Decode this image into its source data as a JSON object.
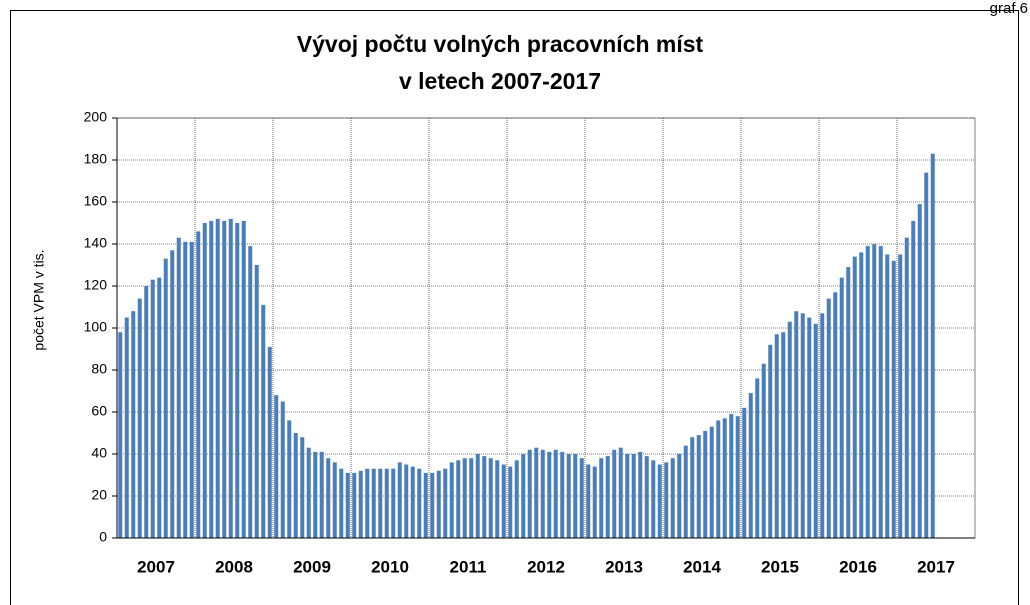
{
  "page_label": "graf 6",
  "chart_data": {
    "type": "bar",
    "title": [
      "Vývoj počtu volných pracovních míst",
      "v letech 2007-2017"
    ],
    "y_label": "počet VPM v tis.",
    "color": "#4a7ebb",
    "ylim": [
      0,
      200
    ],
    "yticks": [
      0,
      20,
      40,
      60,
      80,
      100,
      120,
      140,
      160,
      180,
      200
    ],
    "grid": true,
    "categories": [
      null,
      null,
      null,
      null,
      null,
      null,
      "2007",
      null,
      null,
      null,
      null,
      null,
      null,
      null,
      null,
      null,
      null,
      null,
      "2008",
      null,
      null,
      null,
      null,
      null,
      null,
      null,
      null,
      null,
      null,
      null,
      "2009",
      null,
      null,
      null,
      null,
      null,
      null,
      null,
      null,
      null,
      null,
      null,
      "2010",
      null,
      null,
      null,
      null,
      null,
      null,
      null,
      null,
      null,
      null,
      null,
      "2011",
      null,
      null,
      null,
      null,
      null,
      null,
      null,
      null,
      null,
      null,
      null,
      "2012",
      null,
      null,
      null,
      null,
      null,
      null,
      null,
      null,
      null,
      null,
      null,
      "2013",
      null,
      null,
      null,
      null,
      null,
      null,
      null,
      null,
      null,
      null,
      null,
      "2014",
      null,
      null,
      null,
      null,
      null,
      null,
      null,
      null,
      null,
      null,
      null,
      "2015",
      null,
      null,
      null,
      null,
      null,
      null,
      null,
      null,
      null,
      null,
      null,
      "2016",
      null,
      null,
      null,
      null,
      null,
      null,
      null,
      null,
      null,
      null,
      null,
      "2017",
      null,
      null,
      null,
      null,
      null
    ],
    "values": [
      98,
      105,
      108,
      114,
      120,
      123,
      124,
      133,
      137,
      143,
      141,
      141,
      146,
      150,
      151,
      152,
      151,
      152,
      150,
      151,
      139,
      130,
      111,
      91,
      68,
      65,
      56,
      50,
      48,
      43,
      41,
      41,
      38,
      36,
      33,
      31,
      31,
      32,
      33,
      33,
      33,
      33,
      33,
      36,
      35,
      34,
      33,
      31,
      31,
      32,
      33,
      36,
      37,
      38,
      38,
      40,
      39,
      38,
      37,
      35,
      34,
      37,
      40,
      42,
      43,
      42,
      41,
      42,
      41,
      40,
      40,
      38,
      35,
      34,
      38,
      39,
      42,
      43,
      40,
      40,
      41,
      39,
      37,
      35,
      36,
      38,
      40,
      44,
      48,
      49,
      51,
      53,
      56,
      57,
      59,
      58,
      62,
      69,
      76,
      83,
      92,
      97,
      98,
      103,
      108,
      107,
      105,
      102,
      107,
      114,
      117,
      124,
      129,
      134,
      136,
      139,
      140,
      139,
      135,
      132,
      135,
      143,
      151,
      159,
      174,
      183,
      null,
      null,
      null,
      null,
      null,
      null
    ]
  }
}
